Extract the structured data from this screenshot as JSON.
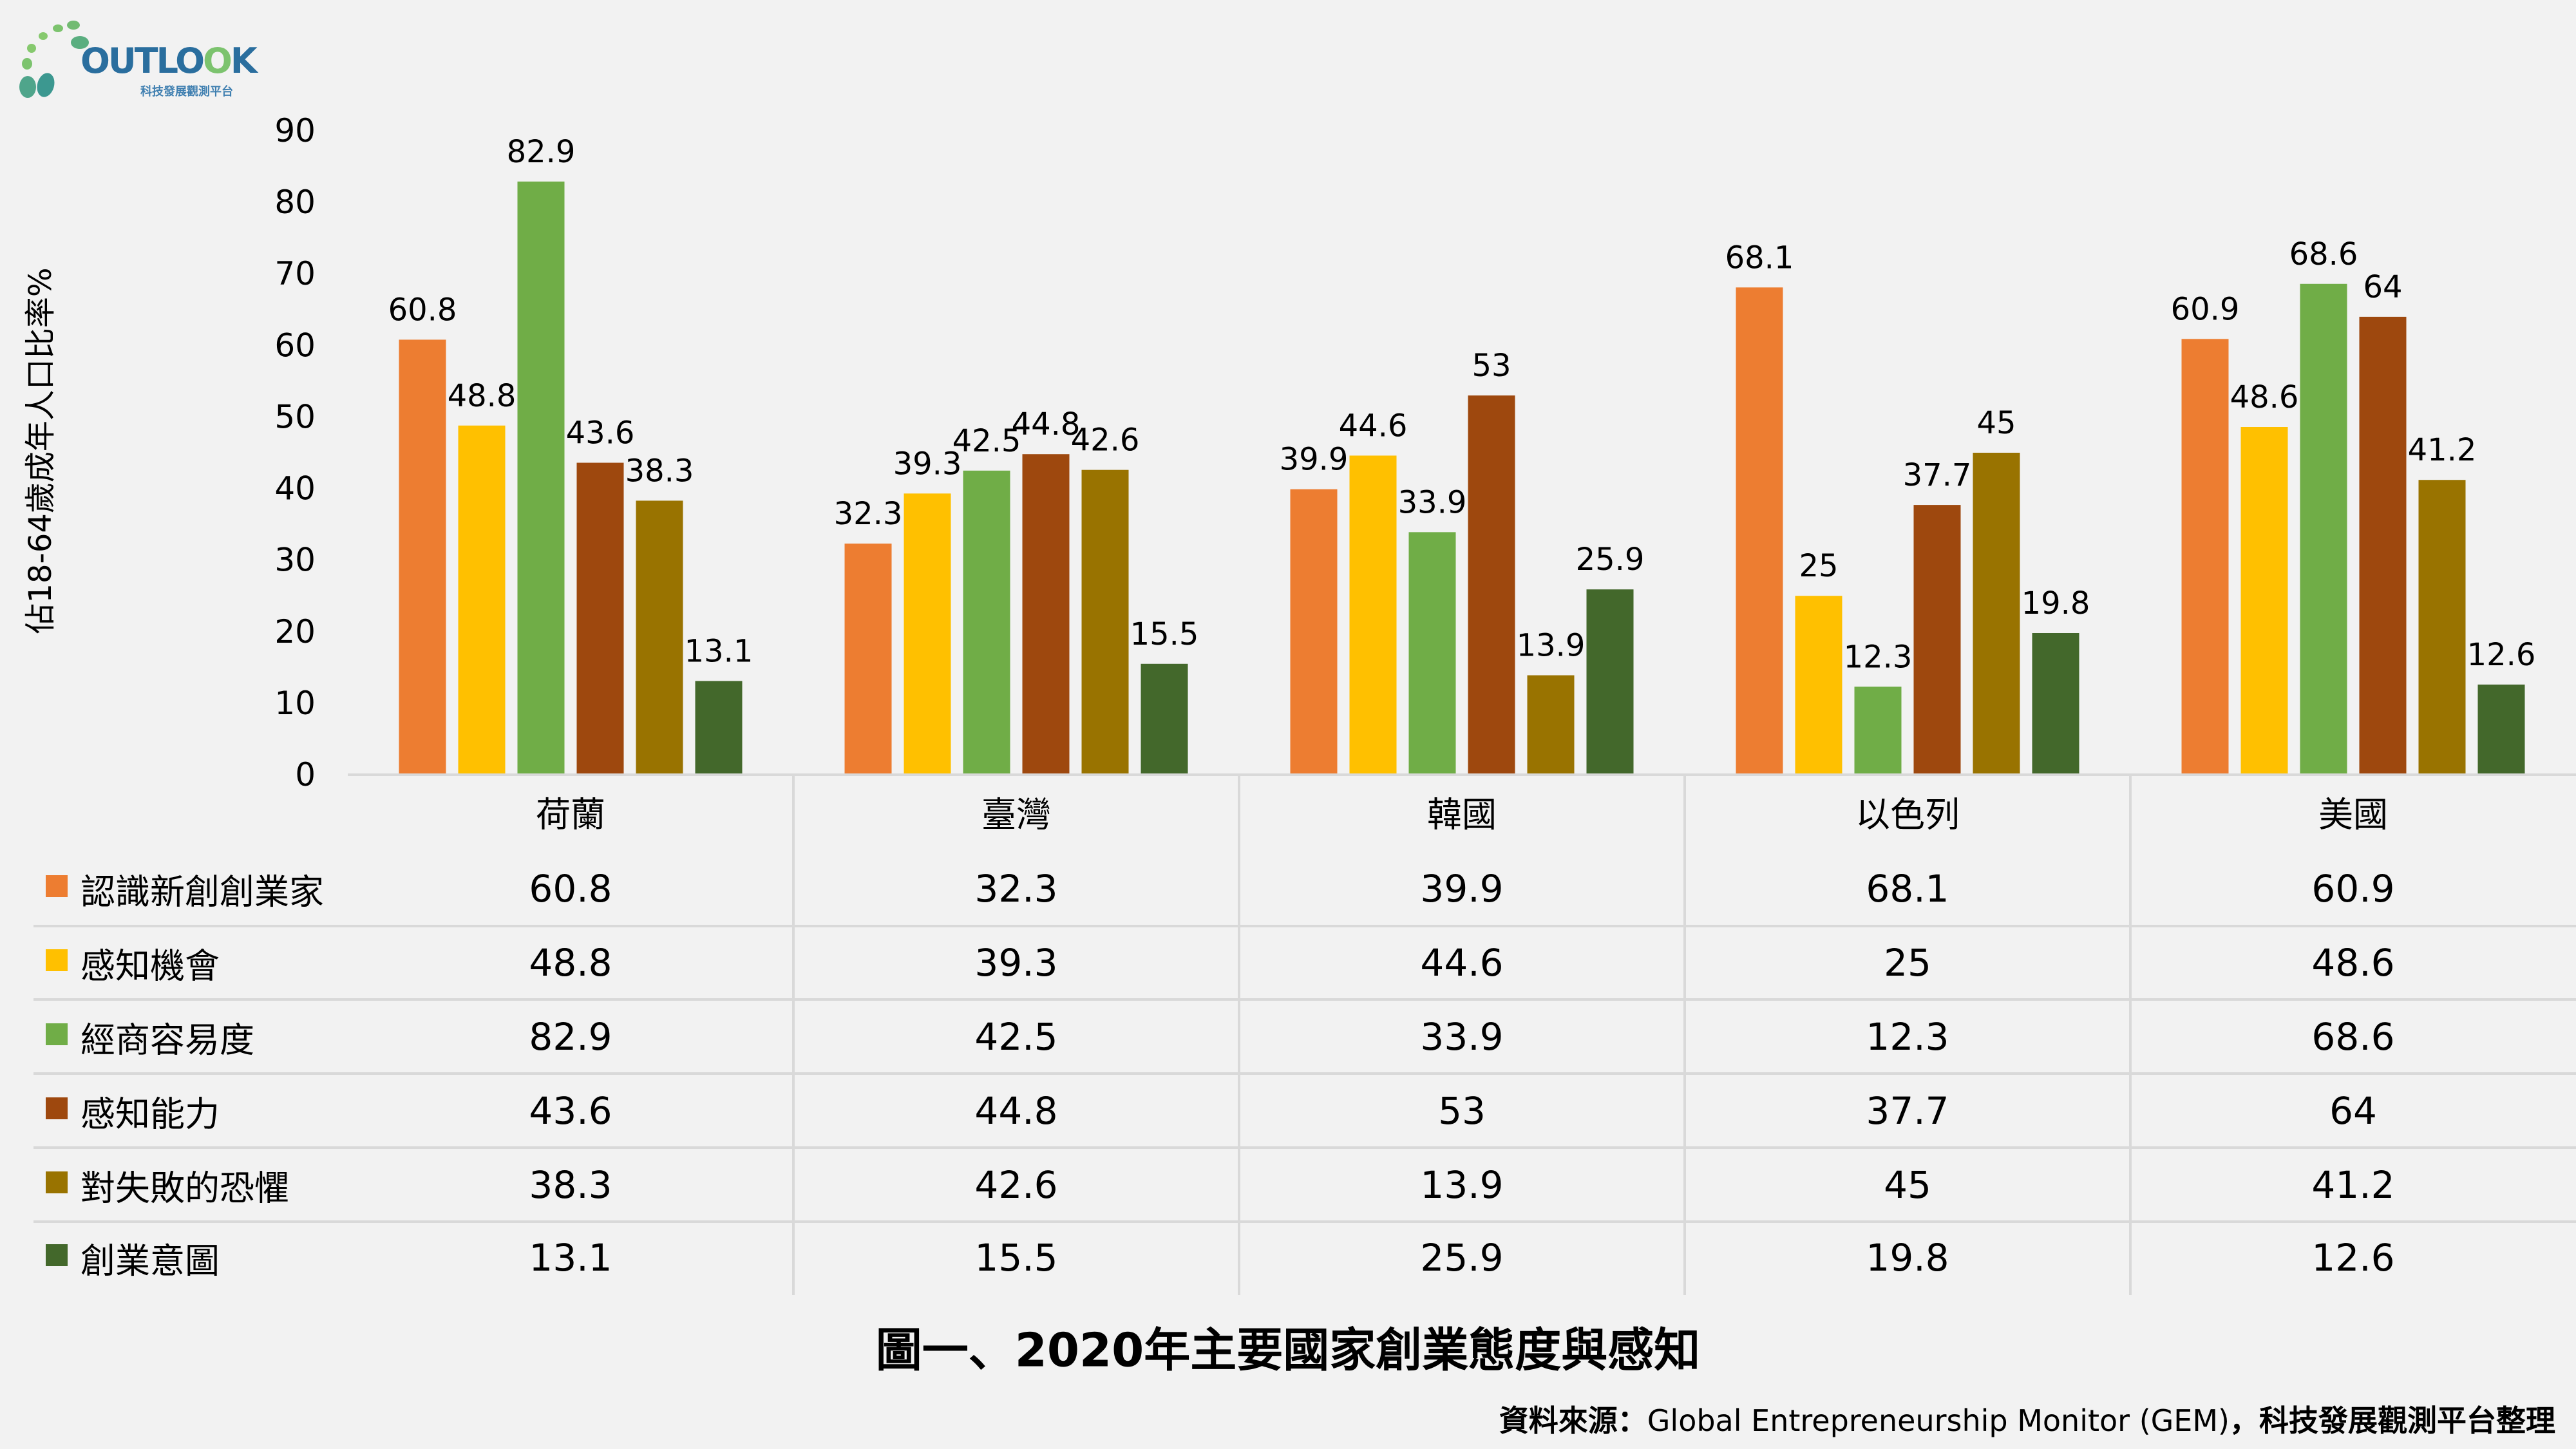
{
  "logo": {
    "word_part1": "OUTLO",
    "word_part2": "O",
    "word_part3": "K",
    "subtitle": "科技發展觀測平台"
  },
  "chart_data": {
    "type": "bar",
    "title": "圖一、2020年主要國家創業態度與感知",
    "xlabel": "",
    "ylabel": "佔18-64歲成年人口比率%",
    "ylim": [
      0,
      90
    ],
    "yticks": [
      0,
      10,
      20,
      30,
      40,
      50,
      60,
      70,
      80,
      90
    ],
    "grid": false,
    "legend": "left-table",
    "categories": [
      "荷蘭",
      "臺灣",
      "韓國",
      "以色列",
      "美國"
    ],
    "series": [
      {
        "name": "認識新創創業家",
        "color": "#ED7D31",
        "values": [
          60.8,
          32.3,
          39.9,
          68.1,
          60.9
        ]
      },
      {
        "name": "感知機會",
        "color": "#FFC000",
        "values": [
          48.8,
          39.3,
          44.6,
          25,
          48.6
        ]
      },
      {
        "name": "經商容易度",
        "color": "#70AD47",
        "values": [
          82.9,
          42.5,
          33.9,
          12.3,
          68.6
        ]
      },
      {
        "name": "感知能力",
        "color": "#9E480E",
        "values": [
          43.6,
          44.8,
          53,
          37.7,
          64
        ]
      },
      {
        "name": "對失敗的恐懼",
        "color": "#997300",
        "values": [
          38.3,
          42.6,
          13.9,
          45,
          41.2
        ]
      },
      {
        "name": "創業意圖",
        "color": "#43682B",
        "values": [
          13.1,
          15.5,
          25.9,
          19.8,
          12.6
        ]
      }
    ],
    "data_table": true
  },
  "source": {
    "prefix": "資料來源：",
    "name": "Global Entrepreneurship Monitor (GEM)",
    "suffix": "，科技發展觀測平台整理"
  },
  "colors": {
    "background": "#F2F2F2",
    "gridline": "#D9D9D9",
    "logo_blue": "#2A6E9E",
    "logo_green": "#7CC36E"
  }
}
